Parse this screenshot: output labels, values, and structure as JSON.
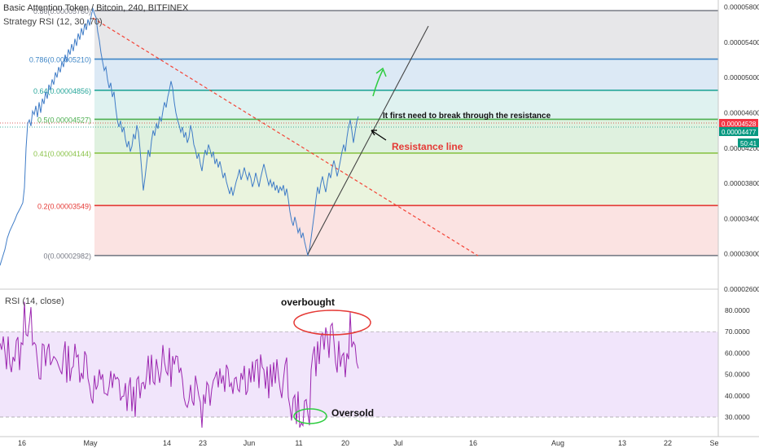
{
  "header": {
    "title": "Basic Attention Token / Bitcoin, 240, BITFINEX",
    "indicator": "Strategy RSI (12, 30, 70)"
  },
  "colors": {
    "price_line": "#3f7cc7",
    "rsi_line": "#9c27b0",
    "fib_1": "#787b86",
    "fib_0786": "#3d85c6",
    "fib_064": "#26a69a",
    "fib_05": "#4caf50",
    "fib_041": "#8bc34a",
    "fib_02": "#e53935",
    "fib_0": "#787b86",
    "resistance_line": "#f44336",
    "trend_line": "#444444",
    "annotation_red": "#e53935",
    "annotation_green": "#2ecc40",
    "price_badge_red": "#f23645",
    "price_badge_green": "#089981"
  },
  "fib_levels": [
    {
      "label": "0.86(0.00005760)",
      "value": 5.76e-05,
      "color_key": "fib_1"
    },
    {
      "label": "0.786(0.00005210)",
      "value": 5.21e-05,
      "color_key": "fib_0786"
    },
    {
      "label": "0.64(0.00004856)",
      "value": 4.856e-05,
      "color_key": "fib_064"
    },
    {
      "label": "0.5(0.00004527)",
      "value": 4.527e-05,
      "color_key": "fib_05"
    },
    {
      "label": "0.41(0.00004144)",
      "value": 4.144e-05,
      "color_key": "fib_041"
    },
    {
      "label": "0.2(0.00003549)",
      "value": 3.549e-05,
      "color_key": "fib_02"
    },
    {
      "label": "0(0.00002982)",
      "value": 2.982e-05,
      "color_key": "fib_0"
    }
  ],
  "price_axis": {
    "ticks": [
      "0.00005800",
      "0.00005400",
      "0.00005000",
      "0.00004600",
      "0.00004200",
      "0.00003800",
      "0.00003400",
      "0.00003000",
      "0.00002600"
    ],
    "tick_values": [
      5.8e-05,
      5.4e-05,
      5e-05,
      4.6e-05,
      4.2e-05,
      3.8e-05,
      3.4e-05,
      3e-05,
      2.6e-05
    ],
    "badges": [
      {
        "text": "0.00004528",
        "color_key": "price_badge_red"
      },
      {
        "text": "0.00004477",
        "color_key": "price_badge_green"
      },
      {
        "text": "50:41",
        "color_key": "price_badge_green"
      }
    ]
  },
  "rsi": {
    "label": "RSI (14, close)",
    "ticks": [
      "80.0000",
      "70.0000",
      "60.0000",
      "50.0000",
      "40.0000",
      "30.0000"
    ],
    "tick_values": [
      80,
      70,
      60,
      50,
      40,
      30
    ],
    "overbought": 70,
    "oversold": 30
  },
  "time_axis": {
    "labels": [
      "16",
      "May",
      "14",
      "23",
      "Jun",
      "11",
      "20",
      "Jul",
      "16",
      "Aug",
      "13",
      "22",
      "Se"
    ]
  },
  "annotations": {
    "breakout_text": "It first need to break through the resistance",
    "resistance_label": "Resistance line",
    "overbought": "overbought",
    "oversold": "Oversold"
  },
  "chart_data": {
    "type": "line",
    "title": "Basic Attention Token / Bitcoin, 240, BITFINEX",
    "xlabel": "",
    "ylabel": "",
    "ylim": [
      2.6e-05,
      5.88e-05
    ],
    "series": [
      {
        "name": "BAT/BTC",
        "points": [
          [
            0,
            2.87e-05
          ],
          [
            3,
            2.96e-05
          ],
          [
            6,
            3.05e-05
          ],
          [
            9,
            3.18e-05
          ],
          [
            12,
            3.26e-05
          ],
          [
            15,
            3.32e-05
          ],
          [
            18,
            3.38e-05
          ],
          [
            21,
            3.45e-05
          ],
          [
            25,
            3.52e-05
          ],
          [
            28,
            3.58e-05
          ],
          [
            30,
            3.75e-05
          ],
          [
            32,
            4.2e-05
          ],
          [
            34,
            4.48e-05
          ],
          [
            36,
            4.52e-05
          ],
          [
            38,
            4.45e-05
          ],
          [
            40,
            4.62e-05
          ],
          [
            42,
            4.58e-05
          ],
          [
            44,
            4.68e-05
          ],
          [
            46,
            4.55e-05
          ],
          [
            48,
            4.72e-05
          ],
          [
            50,
            4.6e-05
          ],
          [
            52,
            4.76e-05
          ],
          [
            54,
            4.7e-05
          ],
          [
            56,
            4.84e-05
          ],
          [
            58,
            4.76e-05
          ],
          [
            60,
            4.92e-05
          ],
          [
            62,
            4.86e-05
          ],
          [
            64,
            4.98e-05
          ],
          [
            66,
            4.92e-05
          ],
          [
            68,
            5.06e-05
          ],
          [
            70,
            5e-05
          ],
          [
            72,
            5.12e-05
          ],
          [
            74,
            5.06e-05
          ],
          [
            76,
            5.18e-05
          ],
          [
            78,
            5.12e-05
          ],
          [
            80,
            5.26e-05
          ],
          [
            82,
            5.18e-05
          ],
          [
            84,
            5.32e-05
          ],
          [
            86,
            5.26e-05
          ],
          [
            88,
            5.38e-05
          ],
          [
            90,
            5.3e-05
          ],
          [
            92,
            5.44e-05
          ],
          [
            94,
            5.36e-05
          ],
          [
            96,
            5.5e-05
          ],
          [
            98,
            5.43e-05
          ],
          [
            100,
            5.56e-05
          ],
          [
            102,
            5.48e-05
          ],
          [
            104,
            5.61e-05
          ],
          [
            106,
            5.54e-05
          ],
          [
            108,
            5.66e-05
          ],
          [
            110,
            5.59e-05
          ],
          [
            112,
            5.7e-05
          ],
          [
            114,
            5.78e-05
          ],
          [
            116,
            5.72e-05
          ],
          [
            118,
            5.68e-05
          ],
          [
            120,
            5.52e-05
          ],
          [
            122,
            5.42e-05
          ],
          [
            124,
            5.28e-05
          ],
          [
            126,
            5.18e-05
          ],
          [
            128,
            5.08e-05
          ],
          [
            130,
            5.12e-05
          ],
          [
            132,
            4.98e-05
          ],
          [
            134,
            4.88e-05
          ],
          [
            136,
            4.94e-05
          ],
          [
            138,
            4.78e-05
          ],
          [
            140,
            4.84e-05
          ],
          [
            142,
            4.66e-05
          ],
          [
            144,
            4.52e-05
          ],
          [
            146,
            4.44e-05
          ],
          [
            148,
            4.51e-05
          ],
          [
            150,
            4.38e-05
          ],
          [
            152,
            4.44e-05
          ],
          [
            154,
            4.3e-05
          ],
          [
            156,
            4.21e-05
          ],
          [
            158,
            4.28e-05
          ],
          [
            160,
            4.16e-05
          ],
          [
            162,
            4.22e-05
          ],
          [
            164,
            4.36e-05
          ],
          [
            166,
            4.3e-05
          ],
          [
            168,
            4.46e-05
          ],
          [
            170,
            4.38e-05
          ],
          [
            172,
            4.18e-05
          ],
          [
            174,
            3.95e-05
          ],
          [
            176,
            3.72e-05
          ],
          [
            178,
            3.86e-05
          ],
          [
            180,
            4.02e-05
          ],
          [
            182,
            4.18e-05
          ],
          [
            184,
            4.1e-05
          ],
          [
            186,
            4.28e-05
          ],
          [
            188,
            4.4e-05
          ],
          [
            190,
            4.34e-05
          ],
          [
            192,
            4.48e-05
          ],
          [
            194,
            4.42e-05
          ],
          [
            196,
            4.56e-05
          ],
          [
            198,
            4.5e-05
          ],
          [
            200,
            4.62e-05
          ],
          [
            202,
            4.72e-05
          ],
          [
            204,
            4.66e-05
          ],
          [
            206,
            4.78e-05
          ],
          [
            208,
            4.86e-05
          ],
          [
            210,
            4.96e-05
          ],
          [
            212,
            4.88e-05
          ],
          [
            214,
            4.72e-05
          ],
          [
            216,
            4.6e-05
          ],
          [
            218,
            4.52e-05
          ],
          [
            220,
            4.46e-05
          ],
          [
            222,
            4.38e-05
          ],
          [
            224,
            4.44e-05
          ],
          [
            226,
            4.32e-05
          ],
          [
            228,
            4.38e-05
          ],
          [
            230,
            4.26e-05
          ],
          [
            232,
            4.32e-05
          ],
          [
            234,
            4.46e-05
          ],
          [
            236,
            4.38e-05
          ],
          [
            238,
            4.24e-05
          ],
          [
            240,
            4.18e-05
          ],
          [
            242,
            4.08e-05
          ],
          [
            244,
            4.14e-05
          ],
          [
            246,
            4.02e-05
          ],
          [
            248,
            3.94e-05
          ],
          [
            250,
            4.08e-05
          ],
          [
            252,
            4.18e-05
          ],
          [
            254,
            4.12e-05
          ],
          [
            256,
            4.24e-05
          ],
          [
            258,
            4.18e-05
          ],
          [
            260,
            4.1e-05
          ],
          [
            262,
            4.16e-05
          ],
          [
            264,
            4.02e-05
          ],
          [
            266,
            4.08e-05
          ],
          [
            268,
            3.98e-05
          ],
          [
            270,
            4.05e-05
          ],
          [
            272,
            3.96e-05
          ],
          [
            274,
            3.86e-05
          ],
          [
            276,
            3.92e-05
          ],
          [
            278,
            3.82e-05
          ],
          [
            280,
            3.75e-05
          ],
          [
            282,
            3.68e-05
          ],
          [
            284,
            3.76e-05
          ],
          [
            286,
            3.66e-05
          ],
          [
            288,
            3.74e-05
          ],
          [
            290,
            3.82e-05
          ],
          [
            292,
            3.88e-05
          ],
          [
            294,
            3.96e-05
          ],
          [
            296,
            3.84e-05
          ],
          [
            298,
            3.9e-05
          ],
          [
            300,
            3.98e-05
          ],
          [
            302,
            3.9e-05
          ],
          [
            304,
            3.84e-05
          ],
          [
            306,
            3.92e-05
          ],
          [
            308,
            3.86e-05
          ],
          [
            310,
            3.76e-05
          ],
          [
            312,
            3.82e-05
          ],
          [
            314,
            3.92e-05
          ],
          [
            316,
            3.84e-05
          ],
          [
            318,
            3.76e-05
          ],
          [
            320,
            3.86e-05
          ],
          [
            322,
            3.94e-05
          ],
          [
            324,
            4.02e-05
          ],
          [
            326,
            3.94e-05
          ],
          [
            328,
            3.86e-05
          ],
          [
            330,
            3.78e-05
          ],
          [
            332,
            3.84e-05
          ],
          [
            334,
            3.76e-05
          ],
          [
            336,
            3.82e-05
          ],
          [
            338,
            3.72e-05
          ],
          [
            340,
            3.78e-05
          ],
          [
            342,
            3.69e-05
          ],
          [
            344,
            3.76e-05
          ],
          [
            346,
            3.72e-05
          ],
          [
            348,
            3.78e-05
          ],
          [
            350,
            3.66e-05
          ],
          [
            352,
            3.74e-05
          ],
          [
            354,
            3.62e-05
          ],
          [
            356,
            3.48e-05
          ],
          [
            358,
            3.38e-05
          ],
          [
            360,
            3.32e-05
          ],
          [
            362,
            3.42e-05
          ],
          [
            364,
            3.34e-05
          ],
          [
            366,
            3.24e-05
          ],
          [
            368,
            3.29e-05
          ],
          [
            370,
            3.18e-05
          ],
          [
            372,
            3.24e-05
          ],
          [
            374,
            3.14e-05
          ],
          [
            376,
            3.06e-05
          ],
          [
            378,
            2.98e-05
          ],
          [
            380,
            3.05e-05
          ],
          [
            382,
            3.18e-05
          ],
          [
            384,
            3.32e-05
          ],
          [
            386,
            3.46e-05
          ],
          [
            388,
            3.62e-05
          ],
          [
            390,
            3.76e-05
          ],
          [
            392,
            3.68e-05
          ],
          [
            394,
            3.8e-05
          ],
          [
            396,
            3.88e-05
          ],
          [
            398,
            3.78e-05
          ],
          [
            400,
            3.7e-05
          ],
          [
            402,
            3.82e-05
          ],
          [
            404,
            3.92e-05
          ],
          [
            406,
            3.86e-05
          ],
          [
            408,
            3.98e-05
          ],
          [
            410,
            4.06e-05
          ],
          [
            412,
            3.98e-05
          ],
          [
            414,
            3.88e-05
          ],
          [
            416,
            3.96e-05
          ],
          [
            418,
            4.06e-05
          ],
          [
            420,
            4.16e-05
          ],
          [
            422,
            4.24e-05
          ],
          [
            424,
            4.16e-05
          ],
          [
            426,
            4.32e-05
          ],
          [
            428,
            4.44e-05
          ],
          [
            430,
            4.52e-05
          ],
          [
            432,
            4.4e-05
          ],
          [
            434,
            4.26e-05
          ],
          [
            436,
            4.38e-05
          ],
          [
            438,
            4.5e-05
          ],
          [
            440,
            4.56e-05
          ]
        ]
      }
    ]
  }
}
